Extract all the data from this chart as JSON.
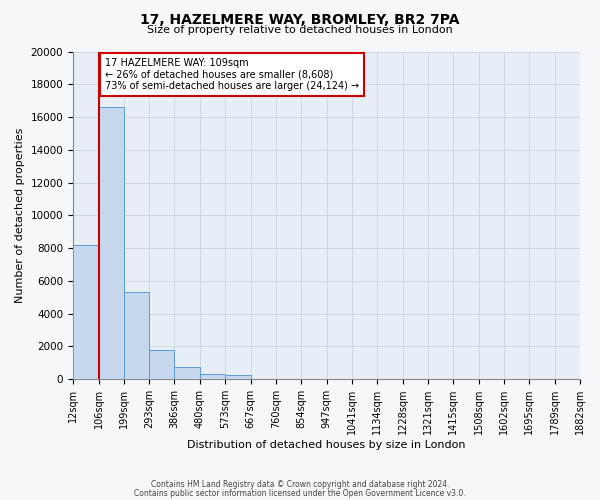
{
  "title": "17, HAZELMERE WAY, BROMLEY, BR2 7PA",
  "subtitle": "Size of property relative to detached houses in London",
  "xlabel": "Distribution of detached houses by size in London",
  "ylabel": "Number of detached properties",
  "bin_labels": [
    "12sqm",
    "106sqm",
    "199sqm",
    "293sqm",
    "386sqm",
    "480sqm",
    "573sqm",
    "667sqm",
    "760sqm",
    "854sqm",
    "947sqm",
    "1041sqm",
    "1134sqm",
    "1228sqm",
    "1321sqm",
    "1415sqm",
    "1508sqm",
    "1602sqm",
    "1695sqm",
    "1789sqm",
    "1882sqm"
  ],
  "bar_heights": [
    8200,
    16600,
    5300,
    1800,
    750,
    300,
    250,
    0,
    0,
    0,
    0,
    0,
    0,
    0,
    0,
    0,
    0,
    0,
    0,
    0
  ],
  "bar_color": "#c5d8ed",
  "bar_edge_color": "#5b9bd5",
  "property_line_x": 109,
  "property_line_color": "#cc0000",
  "annotation_text": "17 HAZELMERE WAY: 109sqm\n← 26% of detached houses are smaller (8,608)\n73% of semi-detached houses are larger (24,124) →",
  "annotation_box_color": "#ffffff",
  "annotation_box_edge": "#cc0000",
  "ylim": [
    0,
    20000
  ],
  "yticks": [
    0,
    2000,
    4000,
    6000,
    8000,
    10000,
    12000,
    14000,
    16000,
    18000,
    20000
  ],
  "grid_color": "#c8d4e0",
  "background_color": "#e8eef6",
  "fig_background": "#f5f7fa",
  "footer_line1": "Contains HM Land Registry data © Crown copyright and database right 2024.",
  "footer_line2": "Contains public sector information licensed under the Open Government Licence v3.0."
}
